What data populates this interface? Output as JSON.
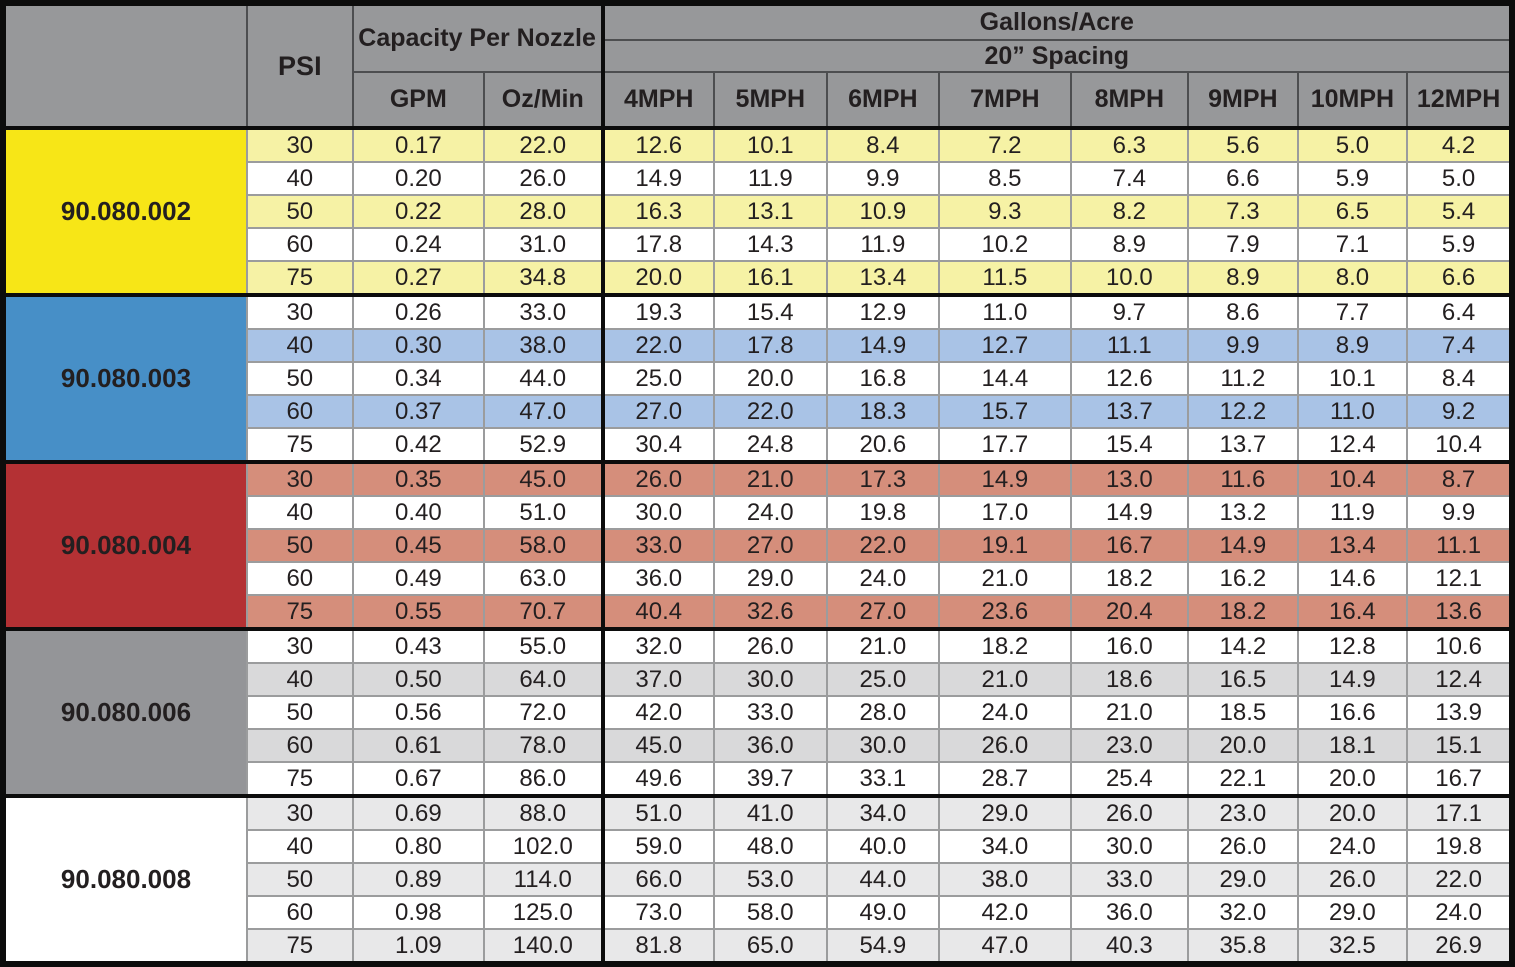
{
  "table": {
    "title": "nozzle-flow-rate-chart",
    "header": {
      "corner": "",
      "psi": "PSI",
      "capacity_title": "Capacity Per Nozzle",
      "gpm": "GPM",
      "oz_min": "Oz/Min",
      "gallons_title": "Gallons/Acre",
      "spacing": "20” Spacing",
      "speeds": [
        "4MPH",
        "5MPH",
        "6MPH",
        "7MPH",
        "8MPH",
        "9MPH",
        "10MPH",
        "12MPH"
      ]
    },
    "colors": {
      "header_bg": "#97989a",
      "header_grid": "#4d4e50",
      "body_grid": "#9b9c9d",
      "thick_border": "#0c0c0c",
      "text": "#231f20",
      "row_white": "#ffffff"
    },
    "groups": [
      {
        "code": "90.080.002",
        "label_bg": "#f7e617",
        "tint_bg": "#f6f2a5",
        "rows": [
          {
            "psi": "30",
            "gpm": "0.17",
            "oz_min": "22.0",
            "gal": [
              "12.6",
              "10.1",
              "8.4",
              "7.2",
              "6.3",
              "5.6",
              "5.0",
              "4.2"
            ]
          },
          {
            "psi": "40",
            "gpm": "0.20",
            "oz_min": "26.0",
            "gal": [
              "14.9",
              "11.9",
              "9.9",
              "8.5",
              "7.4",
              "6.6",
              "5.9",
              "5.0"
            ]
          },
          {
            "psi": "50",
            "gpm": "0.22",
            "oz_min": "28.0",
            "gal": [
              "16.3",
              "13.1",
              "10.9",
              "9.3",
              "8.2",
              "7.3",
              "6.5",
              "5.4"
            ]
          },
          {
            "psi": "60",
            "gpm": "0.24",
            "oz_min": "31.0",
            "gal": [
              "17.8",
              "14.3",
              "11.9",
              "10.2",
              "8.9",
              "7.9",
              "7.1",
              "5.9"
            ]
          },
          {
            "psi": "75",
            "gpm": "0.27",
            "oz_min": "34.8",
            "gal": [
              "20.0",
              "16.1",
              "13.4",
              "11.5",
              "10.0",
              "8.9",
              "8.0",
              "6.6"
            ]
          }
        ]
      },
      {
        "code": "90.080.003",
        "label_bg": "#478fc7",
        "tint_bg": "#a9c3e6",
        "rows": [
          {
            "psi": "30",
            "gpm": "0.26",
            "oz_min": "33.0",
            "gal": [
              "19.3",
              "15.4",
              "12.9",
              "11.0",
              "9.7",
              "8.6",
              "7.7",
              "6.4"
            ]
          },
          {
            "psi": "40",
            "gpm": "0.30",
            "oz_min": "38.0",
            "gal": [
              "22.0",
              "17.8",
              "14.9",
              "12.7",
              "11.1",
              "9.9",
              "8.9",
              "7.4"
            ]
          },
          {
            "psi": "50",
            "gpm": "0.34",
            "oz_min": "44.0",
            "gal": [
              "25.0",
              "20.0",
              "16.8",
              "14.4",
              "12.6",
              "11.2",
              "10.1",
              "8.4"
            ]
          },
          {
            "psi": "60",
            "gpm": "0.37",
            "oz_min": "47.0",
            "gal": [
              "27.0",
              "22.0",
              "18.3",
              "15.7",
              "13.7",
              "12.2",
              "11.0",
              "9.2"
            ]
          },
          {
            "psi": "75",
            "gpm": "0.42",
            "oz_min": "52.9",
            "gal": [
              "30.4",
              "24.8",
              "20.6",
              "17.7",
              "15.4",
              "13.7",
              "12.4",
              "10.4"
            ]
          }
        ]
      },
      {
        "code": "90.080.004",
        "label_bg": "#b43134",
        "tint_bg": "#d58e7b",
        "rows": [
          {
            "psi": "30",
            "gpm": "0.35",
            "oz_min": "45.0",
            "gal": [
              "26.0",
              "21.0",
              "17.3",
              "14.9",
              "13.0",
              "11.6",
              "10.4",
              "8.7"
            ]
          },
          {
            "psi": "40",
            "gpm": "0.40",
            "oz_min": "51.0",
            "gal": [
              "30.0",
              "24.0",
              "19.8",
              "17.0",
              "14.9",
              "13.2",
              "11.9",
              "9.9"
            ]
          },
          {
            "psi": "50",
            "gpm": "0.45",
            "oz_min": "58.0",
            "gal": [
              "33.0",
              "27.0",
              "22.0",
              "19.1",
              "16.7",
              "14.9",
              "13.4",
              "11.1"
            ]
          },
          {
            "psi": "60",
            "gpm": "0.49",
            "oz_min": "63.0",
            "gal": [
              "36.0",
              "29.0",
              "24.0",
              "21.0",
              "18.2",
              "16.2",
              "14.6",
              "12.1"
            ]
          },
          {
            "psi": "75",
            "gpm": "0.55",
            "oz_min": "70.7",
            "gal": [
              "40.4",
              "32.6",
              "27.0",
              "23.6",
              "20.4",
              "18.2",
              "16.4",
              "13.6"
            ]
          }
        ]
      },
      {
        "code": "90.080.006",
        "label_bg": "#949598",
        "tint_bg": "#d9d9da",
        "rows": [
          {
            "psi": "30",
            "gpm": "0.43",
            "oz_min": "55.0",
            "gal": [
              "32.0",
              "26.0",
              "21.0",
              "18.2",
              "16.0",
              "14.2",
              "12.8",
              "10.6"
            ]
          },
          {
            "psi": "40",
            "gpm": "0.50",
            "oz_min": "64.0",
            "gal": [
              "37.0",
              "30.0",
              "25.0",
              "21.0",
              "18.6",
              "16.5",
              "14.9",
              "12.4"
            ]
          },
          {
            "psi": "50",
            "gpm": "0.56",
            "oz_min": "72.0",
            "gal": [
              "42.0",
              "33.0",
              "28.0",
              "24.0",
              "21.0",
              "18.5",
              "16.6",
              "13.9"
            ]
          },
          {
            "psi": "60",
            "gpm": "0.61",
            "oz_min": "78.0",
            "gal": [
              "45.0",
              "36.0",
              "30.0",
              "26.0",
              "23.0",
              "20.0",
              "18.1",
              "15.1"
            ]
          },
          {
            "psi": "75",
            "gpm": "0.67",
            "oz_min": "86.0",
            "gal": [
              "49.6",
              "39.7",
              "33.1",
              "28.7",
              "25.4",
              "22.1",
              "20.0",
              "16.7"
            ]
          }
        ]
      },
      {
        "code": "90.080.008",
        "label_bg": "#ffffff",
        "tint_bg": "#e8e8e9",
        "rows": [
          {
            "psi": "30",
            "gpm": "0.69",
            "oz_min": "88.0",
            "gal": [
              "51.0",
              "41.0",
              "34.0",
              "29.0",
              "26.0",
              "23.0",
              "20.0",
              "17.1"
            ]
          },
          {
            "psi": "40",
            "gpm": "0.80",
            "oz_min": "102.0",
            "gal": [
              "59.0",
              "48.0",
              "40.0",
              "34.0",
              "30.0",
              "26.0",
              "24.0",
              "19.8"
            ]
          },
          {
            "psi": "50",
            "gpm": "0.89",
            "oz_min": "114.0",
            "gal": [
              "66.0",
              "53.0",
              "44.0",
              "38.0",
              "33.0",
              "29.0",
              "26.0",
              "22.0"
            ]
          },
          {
            "psi": "60",
            "gpm": "0.98",
            "oz_min": "125.0",
            "gal": [
              "73.0",
              "58.0",
              "49.0",
              "42.0",
              "36.0",
              "32.0",
              "29.0",
              "24.0"
            ]
          },
          {
            "psi": "75",
            "gpm": "1.09",
            "oz_min": "140.0",
            "gal": [
              "81.8",
              "65.0",
              "54.9",
              "47.0",
              "40.3",
              "35.8",
              "32.5",
              "26.9"
            ]
          }
        ]
      }
    ]
  }
}
